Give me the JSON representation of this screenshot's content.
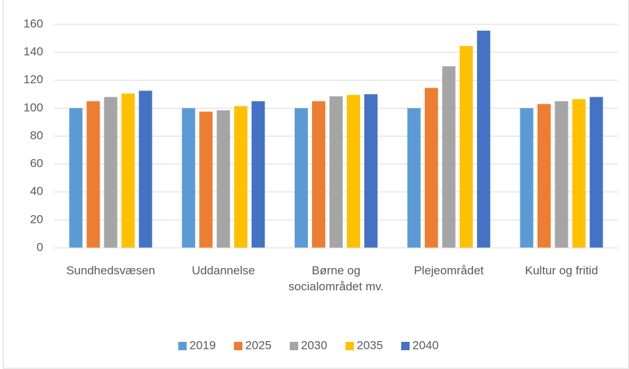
{
  "chart_data": {
    "type": "bar",
    "categories": [
      "Sundhedsvæsen",
      "Uddannelse",
      "Børne og socialområdet mv.",
      "Plejeområdet",
      "Kultur og fritid"
    ],
    "series": [
      {
        "name": "2019",
        "color": "#5b9bd5",
        "values": [
          100,
          100,
          100,
          100,
          100
        ]
      },
      {
        "name": "2025",
        "color": "#ed7d31",
        "values": [
          105,
          97.5,
          105,
          114.5,
          103
        ]
      },
      {
        "name": "2030",
        "color": "#a5a5a5",
        "values": [
          108,
          98.5,
          108.5,
          130,
          105
        ]
      },
      {
        "name": "2035",
        "color": "#ffc000",
        "values": [
          110.5,
          101.5,
          109.5,
          144.5,
          106.5
        ]
      },
      {
        "name": "2040",
        "color": "#4472c4",
        "values": [
          112.5,
          105,
          110,
          155.5,
          108
        ]
      }
    ],
    "ylim": [
      0,
      160
    ],
    "yticks": [
      0,
      20,
      40,
      60,
      80,
      100,
      120,
      140,
      160
    ],
    "grid": true,
    "legend": "bottom"
  }
}
